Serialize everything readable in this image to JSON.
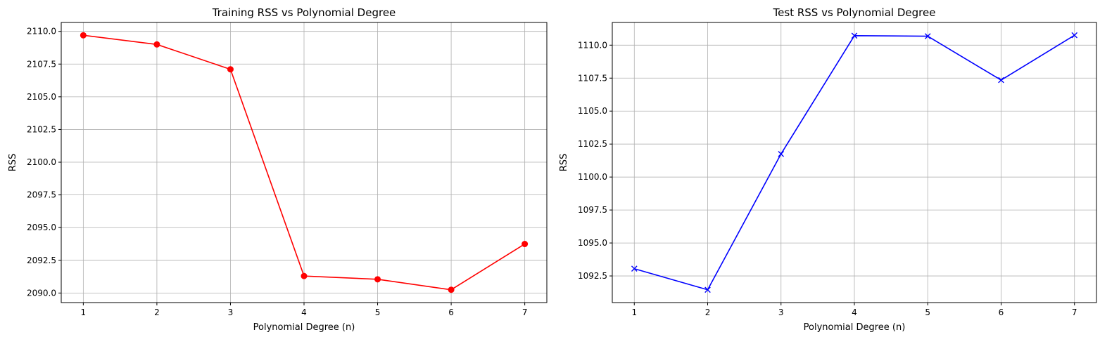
{
  "chart_data": [
    {
      "type": "line",
      "title": "Training RSS vs Polynomial Degree",
      "xlabel": "Polynomial Degree (n)",
      "ylabel": "RSS",
      "x": [
        1,
        2,
        3,
        4,
        5,
        6,
        7
      ],
      "series": [
        {
          "values": [
            2109.7,
            2109.0,
            2107.1,
            2091.3,
            2091.05,
            2090.25,
            2093.75
          ],
          "color": "#ff0000",
          "marker": "circle"
        }
      ],
      "xticks": [
        "1",
        "2",
        "3",
        "4",
        "5",
        "6",
        "7"
      ],
      "yticks": [
        "2090.0",
        "2092.5",
        "2095.0",
        "2097.5",
        "2100.0",
        "2102.5",
        "2105.0",
        "2107.5",
        "2110.0"
      ],
      "xlim": [
        0.7,
        7.3
      ],
      "ylim": [
        2089.27,
        2110.68
      ],
      "grid": true
    },
    {
      "type": "line",
      "title": "Test RSS vs Polynomial Degree",
      "xlabel": "Polynomial Degree (n)",
      "ylabel": "RSS",
      "x": [
        1,
        2,
        3,
        4,
        5,
        6,
        7
      ],
      "series": [
        {
          "values": [
            1093.05,
            1091.45,
            1101.75,
            1110.72,
            1110.68,
            1107.35,
            1110.75
          ],
          "color": "#0000ff",
          "marker": "x"
        }
      ],
      "xticks": [
        "1",
        "2",
        "3",
        "4",
        "5",
        "6",
        "7"
      ],
      "yticks": [
        "1092.5",
        "1095.0",
        "1097.5",
        "1100.0",
        "1102.5",
        "1105.0",
        "1107.5",
        "1110.0"
      ],
      "xlim": [
        0.7,
        7.3
      ],
      "ylim": [
        1090.48,
        1111.72
      ],
      "grid": true
    }
  ]
}
